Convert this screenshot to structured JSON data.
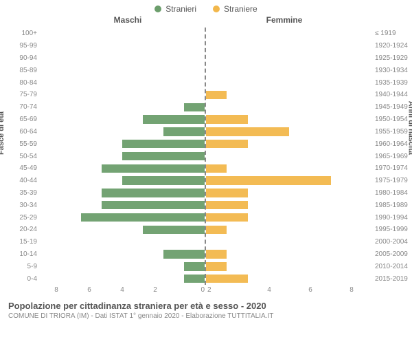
{
  "chart": {
    "type": "population-pyramid",
    "legend": {
      "male": {
        "label": "Stranieri",
        "color": "#6c9e6c"
      },
      "female": {
        "label": "Straniere",
        "color": "#f2b74b"
      }
    },
    "column_headers": {
      "left": "Maschi",
      "right": "Femmine"
    },
    "y_axis_left_label": "Fasce di età",
    "y_axis_right_label": "Anni di nascita",
    "age_bands": [
      "100+",
      "95-99",
      "90-94",
      "85-89",
      "80-84",
      "75-79",
      "70-74",
      "65-69",
      "60-64",
      "55-59",
      "50-54",
      "45-49",
      "40-44",
      "35-39",
      "30-34",
      "25-29",
      "20-24",
      "15-19",
      "10-14",
      "5-9",
      "0-4"
    ],
    "birth_bands": [
      "≤ 1919",
      "1920-1924",
      "1925-1929",
      "1930-1934",
      "1935-1939",
      "1940-1944",
      "1945-1949",
      "1950-1954",
      "1955-1959",
      "1960-1964",
      "1965-1969",
      "1970-1974",
      "1975-1979",
      "1980-1984",
      "1985-1989",
      "1990-1994",
      "1995-1999",
      "2000-2004",
      "2005-2009",
      "2010-2014",
      "2015-2019"
    ],
    "male_values": [
      0,
      0,
      0,
      0,
      0,
      0,
      1,
      3,
      2,
      4,
      4,
      5,
      4,
      5,
      5,
      6,
      3,
      0,
      2,
      1,
      1
    ],
    "female_values": [
      0,
      0,
      0,
      0,
      0,
      1,
      0,
      2,
      4,
      2,
      0,
      1,
      6,
      2,
      2,
      2,
      1,
      0,
      1,
      1,
      2
    ],
    "x_max": 8,
    "x_ticks": [
      8,
      6,
      4,
      2,
      0,
      2,
      4,
      6,
      8
    ],
    "grid_color": "#eeeeee",
    "background_color": "#ffffff",
    "axis_dash_color": "#888888",
    "label_fontsize": 10,
    "header_fontsize": 12
  },
  "title": "Popolazione per cittadinanza straniera per età e sesso - 2020",
  "subtitle": "COMUNE DI TRIORA (IM) - Dati ISTAT 1° gennaio 2020 - Elaborazione TUTTITALIA.IT"
}
